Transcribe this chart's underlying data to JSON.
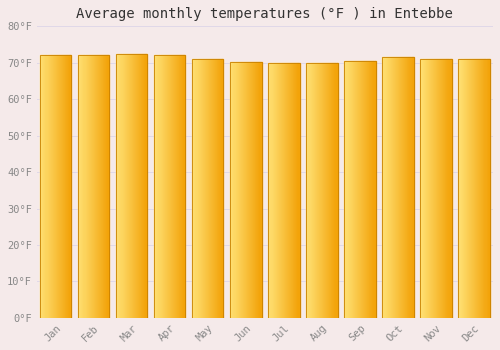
{
  "title": "Average monthly temperatures (°F ) in Entebbe",
  "months": [
    "Jan",
    "Feb",
    "Mar",
    "Apr",
    "May",
    "Jun",
    "Jul",
    "Aug",
    "Sep",
    "Oct",
    "Nov",
    "Dec"
  ],
  "values": [
    72,
    72,
    72.5,
    72,
    71,
    70.2,
    69.8,
    70,
    70.5,
    71.5,
    71,
    71
  ],
  "ylim": [
    0,
    80
  ],
  "yticks": [
    0,
    10,
    20,
    30,
    40,
    50,
    60,
    70,
    80
  ],
  "ytick_labels": [
    "0°F",
    "10°F",
    "20°F",
    "30°F",
    "40°F",
    "50°F",
    "60°F",
    "70°F",
    "80°F"
  ],
  "bar_color_left": "#FFD966",
  "bar_color_right": "#F0A000",
  "bar_edge_color": "#C88000",
  "background_color": "#F5EAEA",
  "grid_color": "#E0D8E8",
  "title_fontsize": 10,
  "tick_fontsize": 7.5,
  "tick_color": "#888888",
  "title_color": "#333333",
  "figsize": [
    5.0,
    3.5
  ],
  "dpi": 100
}
